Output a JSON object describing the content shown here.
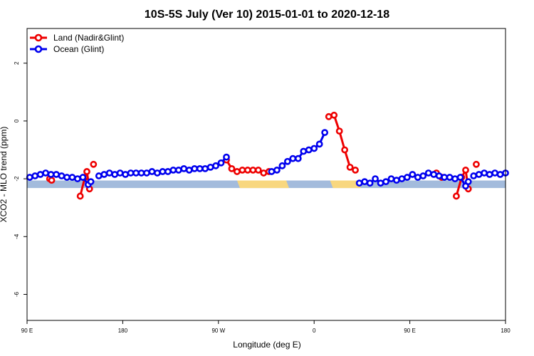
{
  "chart_data": {
    "type": "line",
    "title": "10S-5S July (Ver 10)   2015-01-01 to 2020-12-18",
    "xlabel": "Longitude (deg E)",
    "ylabel": "XCO2 - MLO trend (ppm)",
    "xlim": [
      90,
      450
    ],
    "ylim": [
      -6.9,
      3.2
    ],
    "x_ticks": [
      {
        "value": 90,
        "label": "90 E"
      },
      {
        "value": 162,
        "label": "180"
      },
      {
        "value": 234,
        "label": "90 W"
      },
      {
        "value": 306,
        "label": "0"
      },
      {
        "value": 378,
        "label": "90 E"
      },
      {
        "value": 450,
        "label": "180"
      }
    ],
    "y_ticks": [
      {
        "value": 2,
        "label": "2"
      },
      {
        "value": 0,
        "label": "0"
      },
      {
        "value": -2,
        "label": "-2"
      },
      {
        "value": -4,
        "label": "-4"
      },
      {
        "value": -6,
        "label": "-6"
      }
    ],
    "legend_position": "top-left",
    "land_ocean_strip": {
      "y_range": [
        -2.32,
        -2.06
      ],
      "ocean_color": "#a3bbdc",
      "land_color": "#f8d77f",
      "land_segments": [
        [
          248,
          285
        ],
        [
          318,
          339
        ]
      ]
    },
    "series": [
      {
        "name": "Land (Nadir&Glint)",
        "color": "#ee0000",
        "segments": [
          [
            [
              107,
              -2.0
            ],
            [
              108.5,
              -2.05
            ]
          ],
          [
            [
              130,
              -2.6
            ],
            [
              133.5,
              -1.95
            ]
          ],
          [
            [
              135,
              -1.75
            ],
            [
              137,
              -2.35
            ]
          ],
          [
            [
              140,
              -1.5
            ]
          ],
          [
            [
              240,
              -1.35
            ],
            [
              244,
              -1.65
            ],
            [
              248,
              -1.75
            ],
            [
              252,
              -1.7
            ],
            [
              256,
              -1.7
            ],
            [
              260,
              -1.7
            ],
            [
              264,
              -1.7
            ],
            [
              268,
              -1.8
            ],
            [
              272,
              -1.75
            ]
          ],
          [
            [
              317,
              0.15
            ],
            [
              321,
              0.2
            ],
            [
              325,
              -0.35
            ],
            [
              329,
              -1.0
            ],
            [
              333,
              -1.6
            ],
            [
              337,
              -1.7
            ]
          ],
          [
            [
              398,
              -1.8
            ],
            [
              402,
              -1.95
            ]
          ],
          [
            [
              413,
              -2.6
            ],
            [
              417,
              -1.95
            ],
            [
              420,
              -1.7
            ],
            [
              422,
              -2.35
            ]
          ],
          [
            [
              428,
              -1.5
            ]
          ]
        ]
      },
      {
        "name": "Ocean (Glint)",
        "color": "#0000ee",
        "segments": [
          [
            [
              92,
              -1.95
            ],
            [
              96,
              -1.9
            ],
            [
              100,
              -1.85
            ],
            [
              104,
              -1.8
            ],
            [
              108,
              -1.85
            ],
            [
              112,
              -1.85
            ],
            [
              116,
              -1.9
            ],
            [
              120,
              -1.95
            ],
            [
              124,
              -1.95
            ],
            [
              128,
              -2.0
            ],
            [
              132,
              -1.95
            ],
            [
              136,
              -2.2
            ],
            [
              138,
              -2.1
            ]
          ],
          [
            [
              144,
              -1.9
            ],
            [
              148,
              -1.85
            ],
            [
              152,
              -1.8
            ],
            [
              156,
              -1.85
            ],
            [
              160,
              -1.8
            ],
            [
              164,
              -1.85
            ],
            [
              168,
              -1.8
            ],
            [
              172,
              -1.8
            ],
            [
              176,
              -1.8
            ],
            [
              180,
              -1.8
            ],
            [
              184,
              -1.75
            ],
            [
              188,
              -1.8
            ],
            [
              192,
              -1.75
            ],
            [
              196,
              -1.75
            ],
            [
              200,
              -1.7
            ],
            [
              204,
              -1.7
            ],
            [
              208,
              -1.65
            ],
            [
              212,
              -1.7
            ],
            [
              216,
              -1.65
            ],
            [
              220,
              -1.65
            ],
            [
              224,
              -1.65
            ],
            [
              228,
              -1.6
            ],
            [
              232,
              -1.55
            ],
            [
              236,
              -1.45
            ],
            [
              240,
              -1.25
            ]
          ],
          [
            [
              274,
              -1.75
            ],
            [
              278,
              -1.7
            ],
            [
              282,
              -1.55
            ],
            [
              286,
              -1.4
            ],
            [
              290,
              -1.3
            ],
            [
              294,
              -1.3
            ],
            [
              298,
              -1.05
            ],
            [
              302,
              -1.0
            ],
            [
              306,
              -0.95
            ],
            [
              310,
              -0.8
            ],
            [
              314,
              -0.4
            ]
          ],
          [
            [
              340,
              -2.15
            ],
            [
              344,
              -2.1
            ],
            [
              348,
              -2.15
            ],
            [
              352,
              -2.0
            ],
            [
              356,
              -2.15
            ],
            [
              360,
              -2.1
            ],
            [
              364,
              -2.0
            ],
            [
              368,
              -2.05
            ],
            [
              372,
              -2.0
            ],
            [
              376,
              -1.95
            ],
            [
              380,
              -1.85
            ],
            [
              384,
              -1.95
            ],
            [
              388,
              -1.9
            ],
            [
              392,
              -1.8
            ],
            [
              396,
              -1.85
            ],
            [
              400,
              -1.9
            ],
            [
              404,
              -1.95
            ],
            [
              408,
              -1.95
            ],
            [
              412,
              -2.0
            ],
            [
              416,
              -1.95
            ],
            [
              420,
              -2.25
            ],
            [
              422,
              -2.1
            ]
          ],
          [
            [
              426,
              -1.9
            ],
            [
              430,
              -1.85
            ],
            [
              434,
              -1.8
            ],
            [
              438,
              -1.85
            ],
            [
              442,
              -1.8
            ],
            [
              446,
              -1.85
            ],
            [
              450,
              -1.8
            ]
          ]
        ]
      }
    ]
  }
}
